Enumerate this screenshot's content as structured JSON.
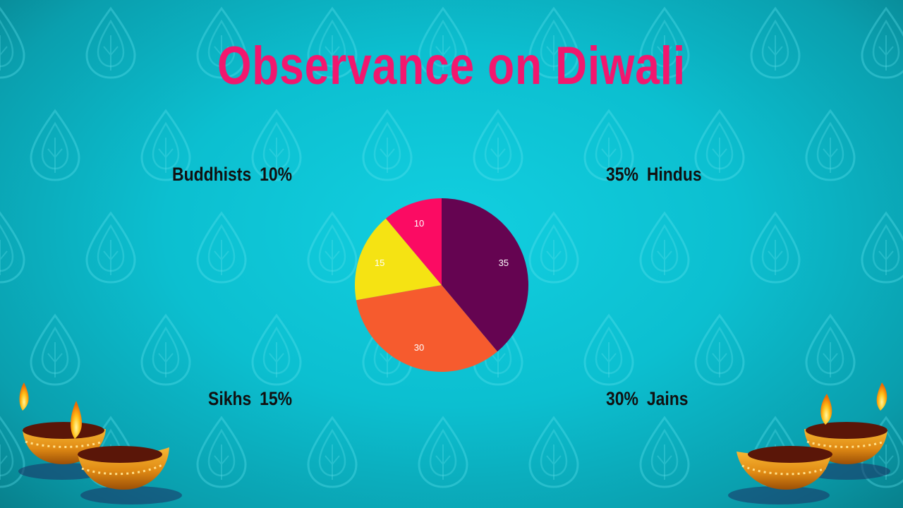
{
  "slide": {
    "title": "Observance on Diwali",
    "colors": {
      "background": "#0cbfd0",
      "title": "#f2176e",
      "label_text": "#111111"
    },
    "decorations": [
      "diya-lamp-icon",
      "diya-lamp-icon",
      "diya-lamp-icon",
      "diya-lamp-icon"
    ]
  },
  "labels": {
    "buddhists": {
      "name": "Buddhists",
      "percent": "10%"
    },
    "hindus": {
      "name": "Hindus",
      "percent": "35%"
    },
    "sikhs": {
      "name": "Sikhs",
      "percent": "15%"
    },
    "jains": {
      "name": "Jains",
      "percent": "30%"
    }
  },
  "chart_data": {
    "type": "pie",
    "title": "Observance on Diwali",
    "categories": [
      "Hindus",
      "Jains",
      "Sikhs",
      "Buddhists"
    ],
    "values": [
      35,
      30,
      15,
      10
    ],
    "data_labels": [
      "35",
      "30",
      "15",
      "10"
    ],
    "colors": [
      "#650451",
      "#f65b2e",
      "#f5e313",
      "#fb0b63"
    ],
    "legend": "none"
  }
}
